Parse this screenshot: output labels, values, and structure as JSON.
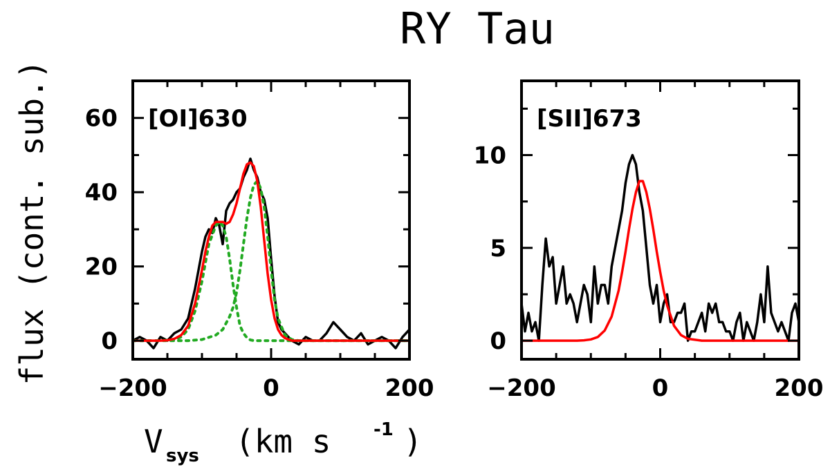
{
  "figure": {
    "title": "RY Tau",
    "ylabel": "flux (cont. sub.)",
    "xlabel_main": "V",
    "xlabel_sub": "sys",
    "xlabel_units": "(km s",
    "xlabel_exp": "-1",
    "xlabel_close": ")"
  },
  "colors": {
    "data": "#000000",
    "fit": "#ff0000",
    "components": "#22aa22"
  },
  "chart_data": [
    {
      "type": "line",
      "line_label": "[OI]630",
      "xlim": [
        -200,
        200
      ],
      "ylim": [
        -5,
        70
      ],
      "xticks": [
        -200,
        0,
        200
      ],
      "yticks": [
        0,
        20,
        40,
        60
      ],
      "grid": false,
      "series": [
        {
          "x": [
            -200,
            -190,
            -180,
            -170,
            -160,
            -150,
            -140,
            -130,
            -120,
            -110,
            -100,
            -95,
            -90,
            -85,
            -80,
            -75,
            -70,
            -65,
            -60,
            -55,
            -50,
            -45,
            -40,
            -35,
            -30,
            -25,
            -20,
            -15,
            -10,
            -5,
            0,
            5,
            10,
            15,
            20,
            25,
            30,
            40,
            50,
            60,
            70,
            80,
            90,
            100,
            110,
            120,
            130,
            140,
            150,
            160,
            170,
            180,
            190,
            200
          ],
          "y": [
            0,
            1,
            0,
            -2,
            1,
            0,
            2,
            3,
            6,
            14,
            24,
            28,
            30,
            29,
            33,
            31,
            26,
            35,
            37,
            38,
            40,
            41,
            44,
            46,
            49,
            46,
            44,
            40,
            38,
            33,
            22,
            12,
            5,
            3,
            2,
            1,
            0,
            -1,
            1,
            0,
            0,
            2,
            5,
            3,
            1,
            0,
            2,
            -1,
            0,
            1,
            0,
            -2,
            1,
            3
          ]
        },
        {
          "x": [
            -200,
            -190,
            -180,
            -170,
            -160,
            -150,
            -140,
            -130,
            -120,
            -110,
            -100,
            -95,
            -90,
            -85,
            -80,
            -75,
            -70,
            -65,
            -60,
            -55,
            -50,
            -45,
            -40,
            -35,
            -30,
            -25,
            -20,
            -15,
            -10,
            -5,
            0,
            5,
            10,
            15,
            20,
            25,
            30,
            40,
            50,
            60,
            80,
            100,
            120,
            140,
            160,
            180,
            200
          ],
          "y": [
            0,
            0,
            0,
            0,
            0,
            0.1,
            0.5,
            1.5,
            4,
            10,
            19,
            24,
            28,
            31,
            32,
            32,
            32,
            31.5,
            32,
            34,
            37,
            41,
            45,
            47.5,
            48,
            47,
            43,
            36,
            27,
            18,
            11,
            6,
            3,
            1.5,
            0.7,
            0.3,
            0,
            0,
            0,
            0,
            0,
            0,
            0,
            0,
            0,
            0,
            0
          ]
        },
        {
          "x": [
            -200,
            -160,
            -140,
            -130,
            -120,
            -110,
            -100,
            -90,
            -80,
            -75,
            -70,
            -65,
            -60,
            -55,
            -50,
            -45,
            -40,
            -35,
            -30,
            -25,
            -20,
            -10,
            0,
            10,
            20,
            40,
            60,
            100,
            200
          ],
          "y": [
            0,
            0,
            0.3,
            1,
            3,
            8,
            16,
            26,
            31,
            32,
            31,
            28,
            22,
            15,
            9,
            4,
            2,
            0.8,
            0.2,
            0,
            0,
            0,
            0,
            0,
            0,
            0,
            0,
            0,
            0
          ]
        },
        {
          "x": [
            -200,
            -120,
            -100,
            -80,
            -70,
            -60,
            -55,
            -50,
            -45,
            -40,
            -35,
            -30,
            -25,
            -20,
            -15,
            -10,
            -5,
            0,
            5,
            10,
            20,
            30,
            40,
            60,
            200
          ],
          "y": [
            0,
            0,
            0.3,
            1.5,
            3,
            6.5,
            9,
            13,
            19,
            26,
            33,
            38.5,
            42,
            43,
            41,
            36,
            28,
            19,
            11,
            6,
            1.5,
            0.3,
            0,
            0,
            0
          ]
        }
      ]
    },
    {
      "type": "line",
      "line_label": "[SII]673",
      "xlim": [
        -200,
        200
      ],
      "ylim": [
        -1,
        14
      ],
      "xticks": [
        -200,
        0,
        200
      ],
      "yticks": [
        0,
        5,
        10
      ],
      "grid": false,
      "series": [
        {
          "x": [
            -200,
            -195,
            -190,
            -185,
            -180,
            -175,
            -170,
            -165,
            -160,
            -155,
            -150,
            -145,
            -140,
            -135,
            -130,
            -125,
            -120,
            -115,
            -110,
            -105,
            -100,
            -95,
            -90,
            -85,
            -80,
            -75,
            -70,
            -65,
            -60,
            -55,
            -50,
            -45,
            -40,
            -35,
            -30,
            -25,
            -20,
            -15,
            -10,
            -5,
            0,
            5,
            10,
            15,
            20,
            25,
            30,
            35,
            40,
            45,
            50,
            55,
            60,
            65,
            70,
            75,
            80,
            85,
            90,
            95,
            100,
            105,
            110,
            115,
            120,
            125,
            130,
            135,
            140,
            145,
            150,
            155,
            160,
            165,
            170,
            175,
            180,
            185,
            190,
            195,
            200
          ],
          "y": [
            2,
            0.5,
            1.5,
            0.5,
            1,
            0,
            3,
            5.5,
            4,
            4.5,
            2,
            3,
            4,
            2,
            2.5,
            2,
            1,
            2,
            3,
            2.5,
            1,
            4,
            2,
            3,
            3,
            2,
            4,
            5,
            6,
            7,
            8.5,
            9.5,
            10,
            9.5,
            8,
            7,
            5,
            3,
            2,
            3,
            1,
            2,
            2.5,
            1,
            1,
            1.5,
            1.5,
            2,
            0,
            0.5,
            0.5,
            1,
            1.5,
            0.5,
            2,
            1.5,
            2,
            1,
            1,
            0.5,
            0.5,
            0,
            1,
            1.5,
            0,
            1,
            0.5,
            0,
            1,
            2.5,
            1,
            4,
            1.5,
            1,
            0.5,
            1,
            0.5,
            0,
            1.5,
            2,
            1
          ]
        },
        {
          "x": [
            -200,
            -150,
            -120,
            -110,
            -100,
            -90,
            -80,
            -70,
            -60,
            -55,
            -50,
            -45,
            -40,
            -35,
            -30,
            -25,
            -20,
            -15,
            -10,
            -5,
            0,
            5,
            10,
            20,
            30,
            40,
            60,
            100,
            200
          ],
          "y": [
            0,
            0,
            0,
            0.02,
            0.07,
            0.2,
            0.55,
            1.3,
            2.7,
            3.7,
            4.8,
            6,
            7.1,
            8,
            8.6,
            8.6,
            8,
            7.1,
            6,
            4.8,
            3.7,
            2.7,
            1.9,
            0.8,
            0.3,
            0.1,
            0,
            0,
            0
          ]
        }
      ]
    }
  ]
}
